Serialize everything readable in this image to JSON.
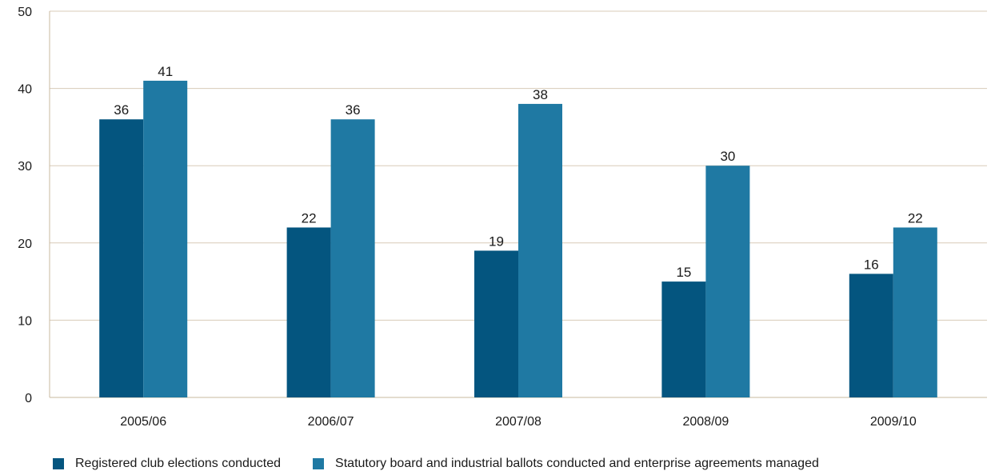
{
  "chart_data": {
    "type": "bar",
    "categories": [
      "2005/06",
      "2006/07",
      "2007/08",
      "2008/09",
      "2009/10"
    ],
    "series": [
      {
        "name": "Registered club elections conducted",
        "values": [
          36,
          22,
          19,
          15,
          16
        ],
        "color": "#04557f"
      },
      {
        "name": "Statutory board and industrial ballots conducted and enterprise agreements managed",
        "values": [
          41,
          36,
          38,
          30,
          22
        ],
        "color": "#1f79a3"
      }
    ],
    "ylim": [
      0,
      50
    ],
    "yticks": [
      0,
      10,
      20,
      30,
      40,
      50
    ],
    "grid": true,
    "legend": "bottom-left",
    "gridColor": "#d8cbb8",
    "axisColor": "#c9b89f"
  }
}
